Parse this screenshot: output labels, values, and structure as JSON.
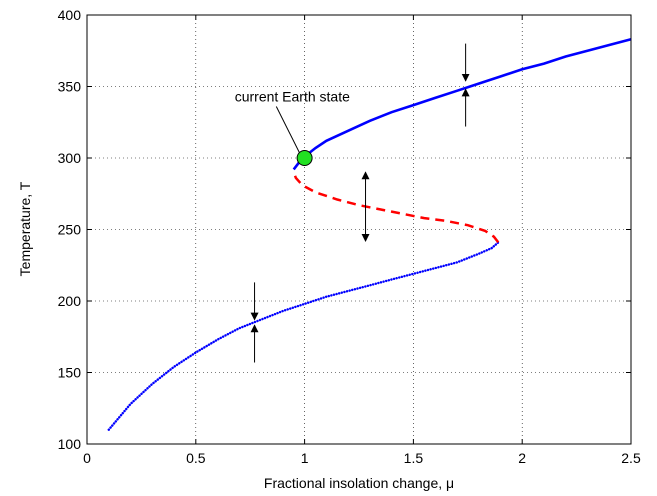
{
  "chart_data": {
    "type": "line",
    "title": "",
    "xlabel": "Fractional insolation change, μ",
    "ylabel": "Temperature, T",
    "xlim": [
      0,
      2.5
    ],
    "ylim": [
      100,
      400
    ],
    "xticks": [
      0,
      0.5,
      1,
      1.5,
      2,
      2.5
    ],
    "xtick_labels": [
      "0",
      "0.5",
      "1",
      "1.5",
      "2",
      "2.5"
    ],
    "yticks": [
      100,
      150,
      200,
      250,
      300,
      350,
      400
    ],
    "ytick_labels": [
      "100",
      "150",
      "200",
      "250",
      "300",
      "350",
      "400"
    ],
    "grid": true,
    "series": [
      {
        "style": "dotted",
        "color": "#0000ff",
        "x": [
          0.1,
          0.2,
          0.3,
          0.4,
          0.5,
          0.6,
          0.7,
          0.8,
          0.9,
          1.0,
          1.1,
          1.2,
          1.3,
          1.4,
          1.5,
          1.6,
          1.7,
          1.8,
          1.86,
          1.89
        ],
        "y": [
          110,
          128,
          142,
          154,
          164,
          173,
          181,
          187,
          193,
          198,
          203,
          207,
          211,
          215,
          219,
          223,
          227,
          233,
          237,
          241
        ]
      },
      {
        "style": "dashed",
        "color": "#ff0000",
        "x": [
          1.89,
          1.87,
          1.83,
          1.75,
          1.65,
          1.55,
          1.45,
          1.35,
          1.25,
          1.15,
          1.05,
          0.99,
          0.96,
          0.95
        ],
        "y": [
          241,
          245,
          249,
          253,
          256,
          258,
          261,
          264,
          267,
          271,
          276,
          281,
          286,
          290
        ]
      },
      {
        "style": "solid",
        "color": "#0000ff",
        "x": [
          0.95,
          0.98,
          1.0,
          1.05,
          1.1,
          1.2,
          1.3,
          1.4,
          1.5,
          1.6,
          1.7,
          1.76,
          1.8,
          1.9,
          2.0,
          2.1,
          2.2,
          2.3,
          2.4,
          2.5
        ],
        "y": [
          292,
          298,
          301,
          307,
          312,
          319,
          326,
          332,
          337,
          342,
          347,
          350,
          352,
          357,
          362,
          366,
          371,
          375,
          379,
          383
        ]
      }
    ],
    "marker": {
      "x": 1.0,
      "y": 300,
      "color": "#22e022",
      "label": "current Earth state"
    },
    "stability_arrows": [
      {
        "x": 0.77,
        "y_tip": 187,
        "y_tail": 213,
        "direction": "down"
      },
      {
        "x": 0.77,
        "y_tip": 183,
        "y_tail": 157,
        "direction": "up"
      },
      {
        "x": 1.74,
        "y_tip": 354,
        "y_tail": 380,
        "direction": "down"
      },
      {
        "x": 1.74,
        "y_tip": 348,
        "y_tail": 322,
        "direction": "up"
      },
      {
        "x": 1.28,
        "y_tip": 290,
        "y_tail": 266,
        "direction": "up"
      },
      {
        "x": 1.28,
        "y_tip": 242,
        "y_tail": 266,
        "direction": "down"
      }
    ]
  }
}
